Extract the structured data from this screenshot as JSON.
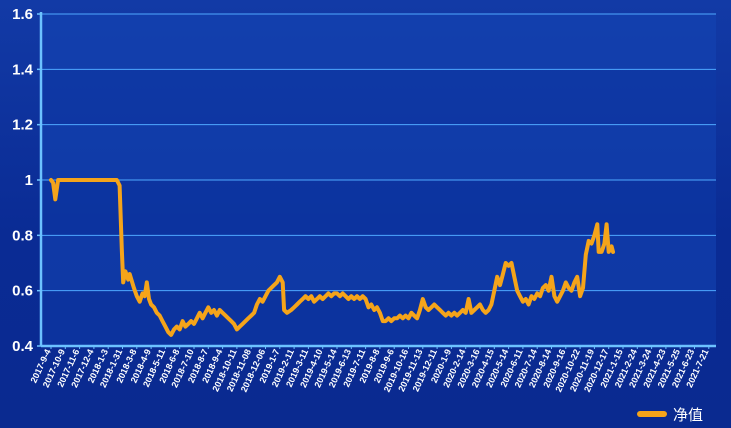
{
  "chart_data": {
    "type": "line",
    "title": "",
    "xlabel": "",
    "ylabel": "",
    "ylim": [
      0.4,
      1.6
    ],
    "y_ticks": [
      "0.4",
      "0.6",
      "0.8",
      "1",
      "1.2",
      "1.4",
      "1.6"
    ],
    "grid": "horizontal",
    "legend_position": "bottom-right",
    "x_tick_labels": [
      "2017-9-4",
      "2017-10-9",
      "2017-11-6",
      "2017-12-4",
      "2018-1-3",
      "2018-1-31",
      "2018-3-8",
      "2018-4-9",
      "2018-5-11",
      "2018-6-8",
      "2018-7-10",
      "2018-8-7",
      "2018-9-4",
      "2018-10-11",
      "2018-11-08",
      "2018-12-06",
      "2019-1-7",
      "2019-2-11",
      "2019-3-11",
      "2019-4-10",
      "2019-5-14",
      "2019-6-13",
      "2019-7-11",
      "2019-8-8",
      "2019-9-6",
      "2019-10-16",
      "2019-11-13",
      "2019-12-11",
      "2020-1-9",
      "2020-2-14",
      "2020-3-16",
      "2020-4-15",
      "2020-5-14",
      "2020-6-11",
      "2020-7-14",
      "2020-8-14",
      "2020-9-16",
      "2020-10-22",
      "2020-11-19",
      "2020-12-17",
      "2021-1-15",
      "2021-2-24",
      "2021-3-24",
      "2021-4-23",
      "2021-5-25",
      "2021-6-23",
      "2021-7-21"
    ],
    "series": [
      {
        "name": "净值",
        "color": "#f5a41a",
        "points": [
          [
            0,
            1.0
          ],
          [
            0.15,
            0.99
          ],
          [
            0.3,
            0.93
          ],
          [
            0.5,
            1.0
          ],
          [
            1,
            1.0
          ],
          [
            2,
            1.0
          ],
          [
            3,
            1.0
          ],
          [
            4,
            1.0
          ],
          [
            4.6,
            1.0
          ],
          [
            4.8,
            0.98
          ],
          [
            4.95,
            0.75
          ],
          [
            5.05,
            0.63
          ],
          [
            5.2,
            0.67
          ],
          [
            5.4,
            0.64
          ],
          [
            5.5,
            0.66
          ],
          [
            5.8,
            0.61
          ],
          [
            6.0,
            0.58
          ],
          [
            6.2,
            0.56
          ],
          [
            6.4,
            0.59
          ],
          [
            6.55,
            0.58
          ],
          [
            6.7,
            0.63
          ],
          [
            6.85,
            0.57
          ],
          [
            7.0,
            0.55
          ],
          [
            7.2,
            0.54
          ],
          [
            7.4,
            0.52
          ],
          [
            7.6,
            0.51
          ],
          [
            7.8,
            0.49
          ],
          [
            8.0,
            0.47
          ],
          [
            8.2,
            0.45
          ],
          [
            8.4,
            0.44
          ],
          [
            8.6,
            0.46
          ],
          [
            8.8,
            0.47
          ],
          [
            9.0,
            0.46
          ],
          [
            9.2,
            0.49
          ],
          [
            9.4,
            0.47
          ],
          [
            9.6,
            0.48
          ],
          [
            9.8,
            0.49
          ],
          [
            10.0,
            0.48
          ],
          [
            10.2,
            0.5
          ],
          [
            10.4,
            0.52
          ],
          [
            10.6,
            0.5
          ],
          [
            10.8,
            0.52
          ],
          [
            11.0,
            0.54
          ],
          [
            11.2,
            0.52
          ],
          [
            11.4,
            0.53
          ],
          [
            11.6,
            0.51
          ],
          [
            11.8,
            0.53
          ],
          [
            12.0,
            0.52
          ],
          [
            12.2,
            0.51
          ],
          [
            12.4,
            0.5
          ],
          [
            12.6,
            0.49
          ],
          [
            12.8,
            0.48
          ],
          [
            13.0,
            0.46
          ],
          [
            13.2,
            0.47
          ],
          [
            13.4,
            0.48
          ],
          [
            13.6,
            0.49
          ],
          [
            13.8,
            0.5
          ],
          [
            14.0,
            0.51
          ],
          [
            14.2,
            0.52
          ],
          [
            14.4,
            0.55
          ],
          [
            14.6,
            0.57
          ],
          [
            14.8,
            0.56
          ],
          [
            15.0,
            0.58
          ],
          [
            15.2,
            0.6
          ],
          [
            15.4,
            0.61
          ],
          [
            15.6,
            0.62
          ],
          [
            15.8,
            0.63
          ],
          [
            16.0,
            0.65
          ],
          [
            16.2,
            0.63
          ],
          [
            16.3,
            0.53
          ],
          [
            16.5,
            0.52
          ],
          [
            16.8,
            0.53
          ],
          [
            17.0,
            0.54
          ],
          [
            17.2,
            0.55
          ],
          [
            17.4,
            0.56
          ],
          [
            17.6,
            0.57
          ],
          [
            17.8,
            0.58
          ],
          [
            18.0,
            0.57
          ],
          [
            18.2,
            0.58
          ],
          [
            18.4,
            0.56
          ],
          [
            18.6,
            0.57
          ],
          [
            18.8,
            0.58
          ],
          [
            19.0,
            0.57
          ],
          [
            19.2,
            0.58
          ],
          [
            19.4,
            0.59
          ],
          [
            19.6,
            0.58
          ],
          [
            19.8,
            0.59
          ],
          [
            20.0,
            0.59
          ],
          [
            20.2,
            0.58
          ],
          [
            20.4,
            0.59
          ],
          [
            20.6,
            0.58
          ],
          [
            20.8,
            0.57
          ],
          [
            21.0,
            0.58
          ],
          [
            21.2,
            0.57
          ],
          [
            21.4,
            0.58
          ],
          [
            21.6,
            0.57
          ],
          [
            21.8,
            0.58
          ],
          [
            22.0,
            0.57
          ],
          [
            22.2,
            0.54
          ],
          [
            22.4,
            0.55
          ],
          [
            22.6,
            0.53
          ],
          [
            22.8,
            0.54
          ],
          [
            23.0,
            0.52
          ],
          [
            23.2,
            0.49
          ],
          [
            23.4,
            0.49
          ],
          [
            23.6,
            0.5
          ],
          [
            23.8,
            0.49
          ],
          [
            24.0,
            0.5
          ],
          [
            24.2,
            0.5
          ],
          [
            24.4,
            0.51
          ],
          [
            24.6,
            0.5
          ],
          [
            24.8,
            0.51
          ],
          [
            25.0,
            0.5
          ],
          [
            25.2,
            0.52
          ],
          [
            25.4,
            0.51
          ],
          [
            25.6,
            0.5
          ],
          [
            25.8,
            0.53
          ],
          [
            26.0,
            0.57
          ],
          [
            26.2,
            0.54
          ],
          [
            26.4,
            0.53
          ],
          [
            26.6,
            0.54
          ],
          [
            26.8,
            0.55
          ],
          [
            27.0,
            0.54
          ],
          [
            27.2,
            0.53
          ],
          [
            27.4,
            0.52
          ],
          [
            27.6,
            0.51
          ],
          [
            27.8,
            0.52
          ],
          [
            28.0,
            0.51
          ],
          [
            28.2,
            0.52
          ],
          [
            28.4,
            0.51
          ],
          [
            28.6,
            0.52
          ],
          [
            28.8,
            0.53
          ],
          [
            29.0,
            0.52
          ],
          [
            29.2,
            0.57
          ],
          [
            29.4,
            0.52
          ],
          [
            29.6,
            0.53
          ],
          [
            29.8,
            0.54
          ],
          [
            30.0,
            0.55
          ],
          [
            30.2,
            0.53
          ],
          [
            30.4,
            0.52
          ],
          [
            30.6,
            0.53
          ],
          [
            30.8,
            0.55
          ],
          [
            31.0,
            0.6
          ],
          [
            31.2,
            0.65
          ],
          [
            31.4,
            0.62
          ],
          [
            31.6,
            0.66
          ],
          [
            31.8,
            0.7
          ],
          [
            32.0,
            0.69
          ],
          [
            32.2,
            0.7
          ],
          [
            32.4,
            0.65
          ],
          [
            32.6,
            0.6
          ],
          [
            32.8,
            0.58
          ],
          [
            33.0,
            0.56
          ],
          [
            33.2,
            0.57
          ],
          [
            33.4,
            0.55
          ],
          [
            33.6,
            0.58
          ],
          [
            33.8,
            0.57
          ],
          [
            34.0,
            0.59
          ],
          [
            34.2,
            0.58
          ],
          [
            34.4,
            0.61
          ],
          [
            34.6,
            0.62
          ],
          [
            34.8,
            0.6
          ],
          [
            35.0,
            0.65
          ],
          [
            35.2,
            0.58
          ],
          [
            35.4,
            0.56
          ],
          [
            35.6,
            0.58
          ],
          [
            35.8,
            0.6
          ],
          [
            36.0,
            0.63
          ],
          [
            36.2,
            0.61
          ],
          [
            36.4,
            0.6
          ],
          [
            36.6,
            0.63
          ],
          [
            36.8,
            0.65
          ],
          [
            37.0,
            0.58
          ],
          [
            37.2,
            0.61
          ],
          [
            37.4,
            0.73
          ],
          [
            37.6,
            0.78
          ],
          [
            37.8,
            0.77
          ],
          [
            38.0,
            0.8
          ],
          [
            38.2,
            0.84
          ],
          [
            38.3,
            0.74
          ],
          [
            38.5,
            0.74
          ],
          [
            38.7,
            0.77
          ],
          [
            38.85,
            0.84
          ],
          [
            39.0,
            0.74
          ],
          [
            39.2,
            0.76
          ],
          [
            39.3,
            0.74
          ]
        ]
      }
    ]
  }
}
